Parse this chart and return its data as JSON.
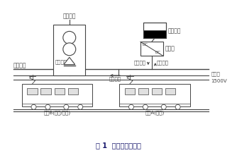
{
  "title": "图 1  系统主电路结构",
  "title_fontsize": 7.0,
  "bg_color": "#ffffff",
  "line_color": "#444444",
  "labels": {
    "ac_grid": "交流电网",
    "storage": "储能元件",
    "converter": "变换器",
    "grid_supply": "电网供能",
    "release_energy": "释放能量",
    "store_energy": "储存能量",
    "dc_bus": "直流母线",
    "traction_energy": "牵引能量",
    "traction_net": "牵引网",
    "voltage": "1500V",
    "train_b": "机车B(启动/加速)",
    "train_a": "机车A(制动)"
  }
}
